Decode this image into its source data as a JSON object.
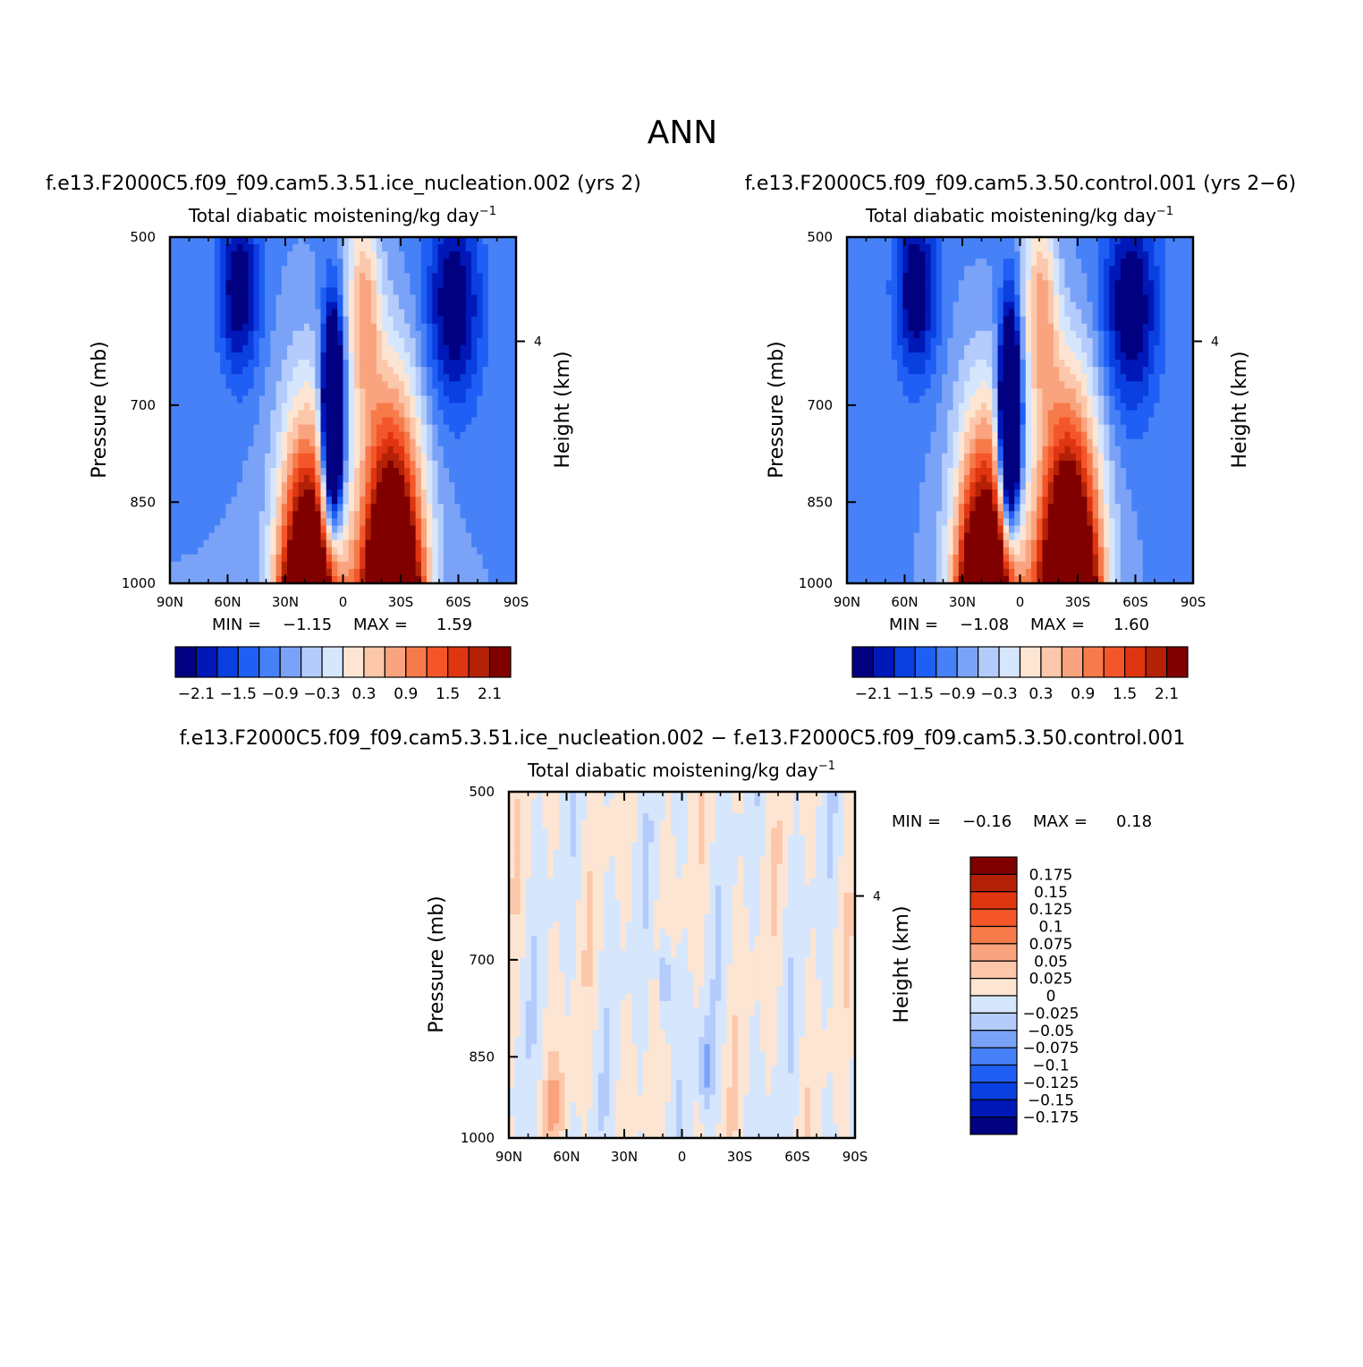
{
  "figure_title": "ANN",
  "chart_data": [
    {
      "type": "heatmap",
      "case_title": "f.e13.F2000C5.f09_f09.cam5.3.51.ice_nucleation.002 (yrs 2)",
      "title": "Total diabatic moistening/kg day",
      "title_exponent": "−1",
      "ylabel": "Pressure (mb)",
      "y2label": "Height (km)",
      "x_ticks": [
        "90N",
        "60N",
        "30N",
        "0",
        "30S",
        "60S",
        "90S"
      ],
      "y_ticks": [
        "500",
        "700",
        "850",
        "1000"
      ],
      "y_ticks_values": [
        500,
        700,
        850,
        1000
      ],
      "y2_ticks": [
        "4"
      ],
      "min_label": "MIN =",
      "min_value": "−1.15",
      "max_label": "MAX =",
      "max_value": "1.59",
      "colorbar_labels": [
        "−2.1",
        "−1.5",
        "−0.9",
        "−0.3",
        "0.3",
        "0.9",
        "1.5",
        "2.1"
      ],
      "colors": [
        "#000080",
        "#0018b8",
        "#0a3fe0",
        "#1f5ff5",
        "#4781f7",
        "#7aa3f8",
        "#b3ccfb",
        "#d6e6fc",
        "#fde5d3",
        "#fcc7aa",
        "#f9a47f",
        "#f77a4a",
        "#f4562a",
        "#e03511",
        "#b32106",
        "#800000"
      ]
    },
    {
      "type": "heatmap",
      "case_title": "f.e13.F2000C5.f09_f09.cam5.3.50.control.001 (yrs 2−6)",
      "title": "Total diabatic moistening/kg day",
      "title_exponent": "−1",
      "ylabel": "Pressure (mb)",
      "y2label": "Height (km)",
      "x_ticks": [
        "90N",
        "60N",
        "30N",
        "0",
        "30S",
        "60S",
        "90S"
      ],
      "y_ticks": [
        "500",
        "700",
        "850",
        "1000"
      ],
      "y_ticks_values": [
        500,
        700,
        850,
        1000
      ],
      "y2_ticks": [
        "4"
      ],
      "min_label": "MIN =",
      "min_value": "−1.08",
      "max_label": "MAX =",
      "max_value": "1.60",
      "colorbar_labels": [
        "−2.1",
        "−1.5",
        "−0.9",
        "−0.3",
        "0.3",
        "0.9",
        "1.5",
        "2.1"
      ],
      "colors": [
        "#000080",
        "#0018b8",
        "#0a3fe0",
        "#1f5ff5",
        "#4781f7",
        "#7aa3f8",
        "#b3ccfb",
        "#d6e6fc",
        "#fde5d3",
        "#fcc7aa",
        "#f9a47f",
        "#f77a4a",
        "#f4562a",
        "#e03511",
        "#b32106",
        "#800000"
      ]
    },
    {
      "type": "heatmap",
      "case_title": "f.e13.F2000C5.f09_f09.cam5.3.51.ice_nucleation.002 − f.e13.F2000C5.f09_f09.cam5.3.50.control.001",
      "title": "Total diabatic moistening/kg day",
      "title_exponent": "−1",
      "ylabel": "Pressure (mb)",
      "y2label": "Height (km)",
      "x_ticks": [
        "90N",
        "60N",
        "30N",
        "0",
        "30S",
        "60S",
        "90S"
      ],
      "y_ticks": [
        "500",
        "700",
        "850",
        "1000"
      ],
      "y_ticks_values": [
        500,
        700,
        850,
        1000
      ],
      "y2_ticks": [
        "4"
      ],
      "min_label": "MIN =",
      "min_value": "−0.16",
      "max_label": "MAX =",
      "max_value": "0.18",
      "colorbar_labels": [
        "0.175",
        "0.15",
        "0.125",
        "0.1",
        "0.075",
        "0.05",
        "0.025",
        "0",
        "−0.025",
        "−0.05",
        "−0.075",
        "−0.1",
        "−0.125",
        "−0.15",
        "−0.175"
      ],
      "colors": [
        "#800000",
        "#b32106",
        "#e03511",
        "#f4562a",
        "#f77a4a",
        "#f9a47f",
        "#fcc7aa",
        "#fde5d3",
        "#d6e6fc",
        "#b3ccfb",
        "#7aa3f8",
        "#4781f7",
        "#1f5ff5",
        "#0a3fe0",
        "#0018b8",
        "#000080"
      ]
    }
  ]
}
